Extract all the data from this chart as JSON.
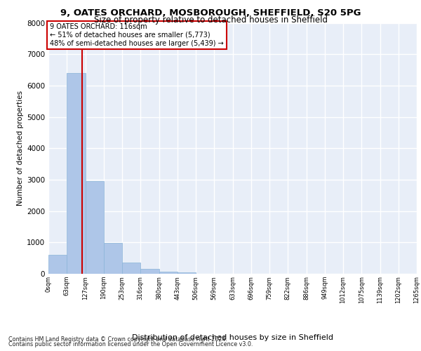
{
  "title_line1": "9, OATES ORCHARD, MOSBOROUGH, SHEFFIELD, S20 5PG",
  "title_line2": "Size of property relative to detached houses in Sheffield",
  "xlabel": "Distribution of detached houses by size in Sheffield",
  "ylabel": "Number of detached properties",
  "footer_line1": "Contains HM Land Registry data © Crown copyright and database right 2024.",
  "footer_line2": "Contains public sector information licensed under the Open Government Licence v3.0.",
  "annotation_line1": "9 OATES ORCHARD: 116sqm",
  "annotation_line2": "← 51% of detached houses are smaller (5,773)",
  "annotation_line3": "48% of semi-detached houses are larger (5,439) →",
  "property_size": 116,
  "bin_edges": [
    0,
    63,
    127,
    190,
    253,
    316,
    380,
    443,
    506,
    569,
    633,
    696,
    759,
    822,
    886,
    949,
    1012,
    1075,
    1139,
    1202,
    1265
  ],
  "bar_values": [
    600,
    6400,
    2950,
    975,
    360,
    150,
    75,
    50,
    0,
    0,
    0,
    0,
    0,
    0,
    0,
    0,
    0,
    0,
    0,
    0
  ],
  "bar_color": "#aec6e8",
  "bar_edge_color": "#8ab4d8",
  "vline_color": "#cc0000",
  "annotation_box_color": "#cc0000",
  "background_color": "#e8eef8",
  "grid_color": "#ffffff",
  "ylim": [
    0,
    8000
  ],
  "yticks": [
    0,
    1000,
    2000,
    3000,
    4000,
    5000,
    6000,
    7000,
    8000
  ]
}
